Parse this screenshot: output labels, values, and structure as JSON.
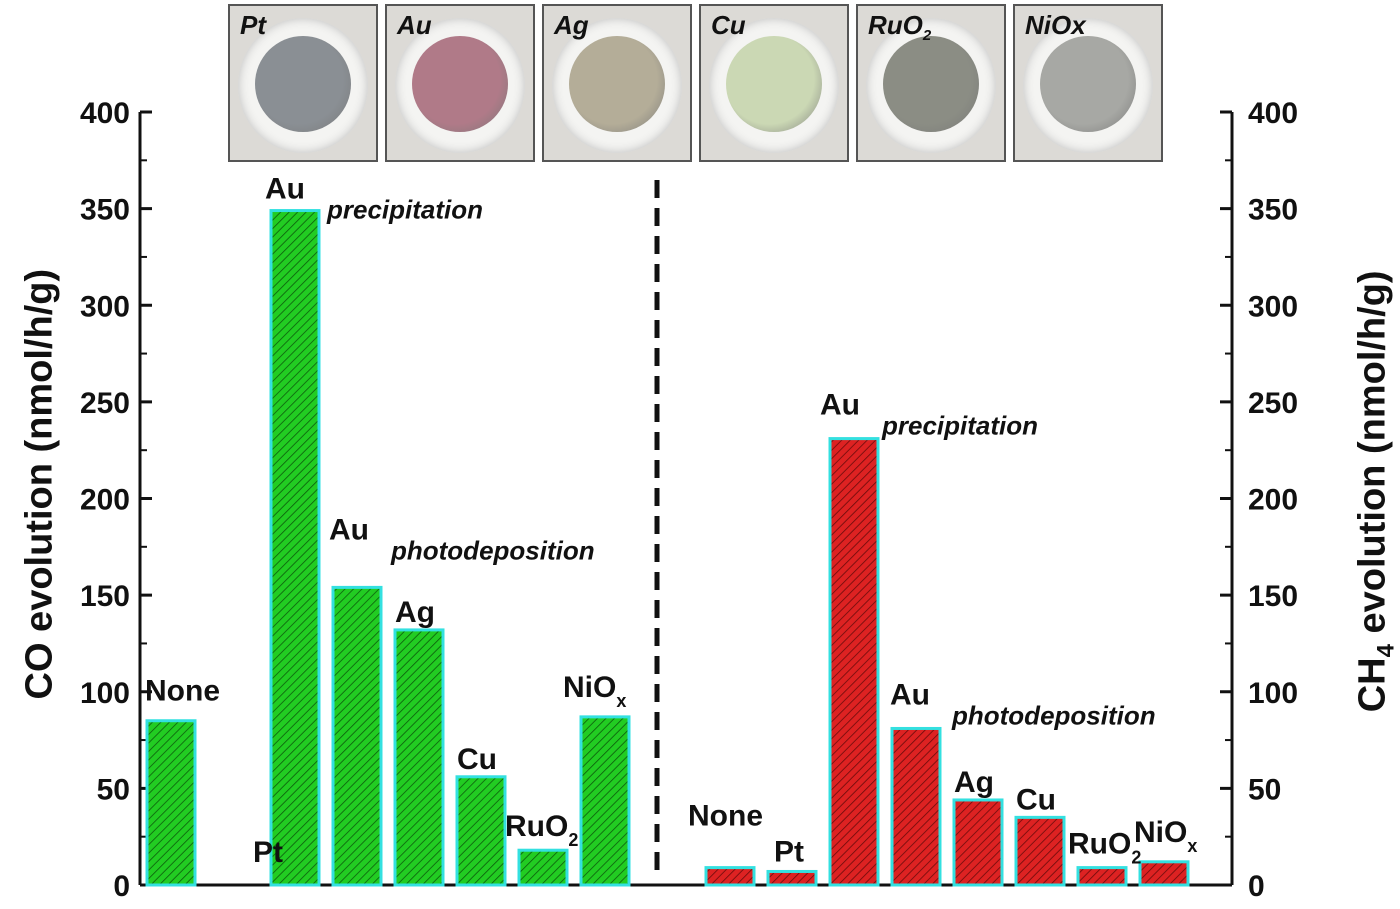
{
  "chart_data": [
    {
      "type": "bar",
      "ylabel": "CO evolution (nmol/h/g)",
      "ylim": [
        0,
        400
      ],
      "yticks": [
        0,
        50,
        100,
        150,
        200,
        250,
        300,
        350,
        400
      ],
      "color": "#22cc22",
      "hatch": "diagonal",
      "categories": [
        {
          "main": "None",
          "sub": "",
          "note": ""
        },
        {
          "main": "Pt",
          "sub": "",
          "note": ""
        },
        {
          "main": "Au",
          "sub": "",
          "note": "precipitation"
        },
        {
          "main": "Au",
          "sub": "",
          "note": "photodeposition"
        },
        {
          "main": "Ag",
          "sub": "",
          "note": ""
        },
        {
          "main": "Cu",
          "sub": "",
          "note": ""
        },
        {
          "main": "RuO",
          "sub": "2",
          "note": ""
        },
        {
          "main": "NiO",
          "sub": "x",
          "note": ""
        }
      ],
      "values": [
        85,
        0,
        349,
        154,
        132,
        56,
        18,
        87
      ]
    },
    {
      "type": "bar",
      "ylabel": "CH4 evolution (nmol/h/g)",
      "ylim": [
        0,
        400
      ],
      "yticks": [
        0,
        50,
        100,
        150,
        200,
        250,
        300,
        350,
        400
      ],
      "color": "#dd2222",
      "hatch": "diagonal",
      "categories": [
        {
          "main": "None",
          "sub": "",
          "note": ""
        },
        {
          "main": "Pt",
          "sub": "",
          "note": ""
        },
        {
          "main": "Au",
          "sub": "",
          "note": "precipitation"
        },
        {
          "main": "Au",
          "sub": "",
          "note": "photodeposition"
        },
        {
          "main": "Ag",
          "sub": "",
          "note": ""
        },
        {
          "main": "Cu",
          "sub": "",
          "note": ""
        },
        {
          "main": "RuO",
          "sub": "2",
          "note": ""
        },
        {
          "main": "NiO",
          "sub": "x",
          "note": ""
        }
      ],
      "values": [
        9,
        7,
        231,
        81,
        44,
        35,
        9,
        12
      ]
    }
  ],
  "axes": {
    "left_label_main": "CO evolution (nmol/h/g)",
    "right_label_pre": "CH",
    "right_label_sub": "4",
    "right_label_post": " evolution (nmol/h/g)"
  },
  "photos": [
    {
      "label": "Pt",
      "sub": "",
      "powder_color": "#8a8f94"
    },
    {
      "label": "Au",
      "sub": "",
      "powder_color": "#b07a88"
    },
    {
      "label": "Ag",
      "sub": "",
      "powder_color": "#b4ad98"
    },
    {
      "label": "Cu",
      "sub": "",
      "powder_color": "#cbd8b4"
    },
    {
      "label": "RuO",
      "sub": "2",
      "powder_color": "#8b8d84"
    },
    {
      "label": "NiOx",
      "sub": "",
      "powder_color": "#a7a8a4"
    }
  ],
  "colors": {
    "co_bar": "#22cc22",
    "ch4_bar": "#dd2222",
    "bar_outline": "#33e0e0",
    "axis": "#111111"
  }
}
